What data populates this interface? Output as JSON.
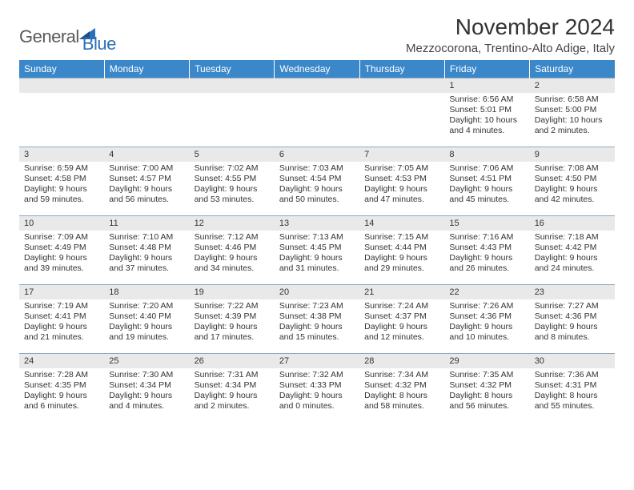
{
  "brand": {
    "word1": "General",
    "word2": "Blue"
  },
  "header": {
    "title": "November 2024",
    "location": "Mezzocorona, Trentino-Alto Adige, Italy"
  },
  "style": {
    "header_bg": "#3a87c9",
    "header_fg": "#ffffff",
    "daynum_bg": "#e9e9e9",
    "row_border": "#8fa8bd",
    "logo_gray": "#5a5a5a",
    "logo_blue": "#2d6fb8",
    "title_fontsize": 28,
    "location_fontsize": 15,
    "weekday_fontsize": 12,
    "body_fontsize": 10.5
  },
  "weekdays": [
    "Sunday",
    "Monday",
    "Tuesday",
    "Wednesday",
    "Thursday",
    "Friday",
    "Saturday"
  ],
  "grid": [
    [
      null,
      null,
      null,
      null,
      null,
      {
        "n": "1",
        "sr": "Sunrise: 6:56 AM",
        "ss": "Sunset: 5:01 PM",
        "d1": "Daylight: 10 hours",
        "d2": "and 4 minutes."
      },
      {
        "n": "2",
        "sr": "Sunrise: 6:58 AM",
        "ss": "Sunset: 5:00 PM",
        "d1": "Daylight: 10 hours",
        "d2": "and 2 minutes."
      }
    ],
    [
      {
        "n": "3",
        "sr": "Sunrise: 6:59 AM",
        "ss": "Sunset: 4:58 PM",
        "d1": "Daylight: 9 hours",
        "d2": "and 59 minutes."
      },
      {
        "n": "4",
        "sr": "Sunrise: 7:00 AM",
        "ss": "Sunset: 4:57 PM",
        "d1": "Daylight: 9 hours",
        "d2": "and 56 minutes."
      },
      {
        "n": "5",
        "sr": "Sunrise: 7:02 AM",
        "ss": "Sunset: 4:55 PM",
        "d1": "Daylight: 9 hours",
        "d2": "and 53 minutes."
      },
      {
        "n": "6",
        "sr": "Sunrise: 7:03 AM",
        "ss": "Sunset: 4:54 PM",
        "d1": "Daylight: 9 hours",
        "d2": "and 50 minutes."
      },
      {
        "n": "7",
        "sr": "Sunrise: 7:05 AM",
        "ss": "Sunset: 4:53 PM",
        "d1": "Daylight: 9 hours",
        "d2": "and 47 minutes."
      },
      {
        "n": "8",
        "sr": "Sunrise: 7:06 AM",
        "ss": "Sunset: 4:51 PM",
        "d1": "Daylight: 9 hours",
        "d2": "and 45 minutes."
      },
      {
        "n": "9",
        "sr": "Sunrise: 7:08 AM",
        "ss": "Sunset: 4:50 PM",
        "d1": "Daylight: 9 hours",
        "d2": "and 42 minutes."
      }
    ],
    [
      {
        "n": "10",
        "sr": "Sunrise: 7:09 AM",
        "ss": "Sunset: 4:49 PM",
        "d1": "Daylight: 9 hours",
        "d2": "and 39 minutes."
      },
      {
        "n": "11",
        "sr": "Sunrise: 7:10 AM",
        "ss": "Sunset: 4:48 PM",
        "d1": "Daylight: 9 hours",
        "d2": "and 37 minutes."
      },
      {
        "n": "12",
        "sr": "Sunrise: 7:12 AM",
        "ss": "Sunset: 4:46 PM",
        "d1": "Daylight: 9 hours",
        "d2": "and 34 minutes."
      },
      {
        "n": "13",
        "sr": "Sunrise: 7:13 AM",
        "ss": "Sunset: 4:45 PM",
        "d1": "Daylight: 9 hours",
        "d2": "and 31 minutes."
      },
      {
        "n": "14",
        "sr": "Sunrise: 7:15 AM",
        "ss": "Sunset: 4:44 PM",
        "d1": "Daylight: 9 hours",
        "d2": "and 29 minutes."
      },
      {
        "n": "15",
        "sr": "Sunrise: 7:16 AM",
        "ss": "Sunset: 4:43 PM",
        "d1": "Daylight: 9 hours",
        "d2": "and 26 minutes."
      },
      {
        "n": "16",
        "sr": "Sunrise: 7:18 AM",
        "ss": "Sunset: 4:42 PM",
        "d1": "Daylight: 9 hours",
        "d2": "and 24 minutes."
      }
    ],
    [
      {
        "n": "17",
        "sr": "Sunrise: 7:19 AM",
        "ss": "Sunset: 4:41 PM",
        "d1": "Daylight: 9 hours",
        "d2": "and 21 minutes."
      },
      {
        "n": "18",
        "sr": "Sunrise: 7:20 AM",
        "ss": "Sunset: 4:40 PM",
        "d1": "Daylight: 9 hours",
        "d2": "and 19 minutes."
      },
      {
        "n": "19",
        "sr": "Sunrise: 7:22 AM",
        "ss": "Sunset: 4:39 PM",
        "d1": "Daylight: 9 hours",
        "d2": "and 17 minutes."
      },
      {
        "n": "20",
        "sr": "Sunrise: 7:23 AM",
        "ss": "Sunset: 4:38 PM",
        "d1": "Daylight: 9 hours",
        "d2": "and 15 minutes."
      },
      {
        "n": "21",
        "sr": "Sunrise: 7:24 AM",
        "ss": "Sunset: 4:37 PM",
        "d1": "Daylight: 9 hours",
        "d2": "and 12 minutes."
      },
      {
        "n": "22",
        "sr": "Sunrise: 7:26 AM",
        "ss": "Sunset: 4:36 PM",
        "d1": "Daylight: 9 hours",
        "d2": "and 10 minutes."
      },
      {
        "n": "23",
        "sr": "Sunrise: 7:27 AM",
        "ss": "Sunset: 4:36 PM",
        "d1": "Daylight: 9 hours",
        "d2": "and 8 minutes."
      }
    ],
    [
      {
        "n": "24",
        "sr": "Sunrise: 7:28 AM",
        "ss": "Sunset: 4:35 PM",
        "d1": "Daylight: 9 hours",
        "d2": "and 6 minutes."
      },
      {
        "n": "25",
        "sr": "Sunrise: 7:30 AM",
        "ss": "Sunset: 4:34 PM",
        "d1": "Daylight: 9 hours",
        "d2": "and 4 minutes."
      },
      {
        "n": "26",
        "sr": "Sunrise: 7:31 AM",
        "ss": "Sunset: 4:34 PM",
        "d1": "Daylight: 9 hours",
        "d2": "and 2 minutes."
      },
      {
        "n": "27",
        "sr": "Sunrise: 7:32 AM",
        "ss": "Sunset: 4:33 PM",
        "d1": "Daylight: 9 hours",
        "d2": "and 0 minutes."
      },
      {
        "n": "28",
        "sr": "Sunrise: 7:34 AM",
        "ss": "Sunset: 4:32 PM",
        "d1": "Daylight: 8 hours",
        "d2": "and 58 minutes."
      },
      {
        "n": "29",
        "sr": "Sunrise: 7:35 AM",
        "ss": "Sunset: 4:32 PM",
        "d1": "Daylight: 8 hours",
        "d2": "and 56 minutes."
      },
      {
        "n": "30",
        "sr": "Sunrise: 7:36 AM",
        "ss": "Sunset: 4:31 PM",
        "d1": "Daylight: 8 hours",
        "d2": "and 55 minutes."
      }
    ]
  ]
}
